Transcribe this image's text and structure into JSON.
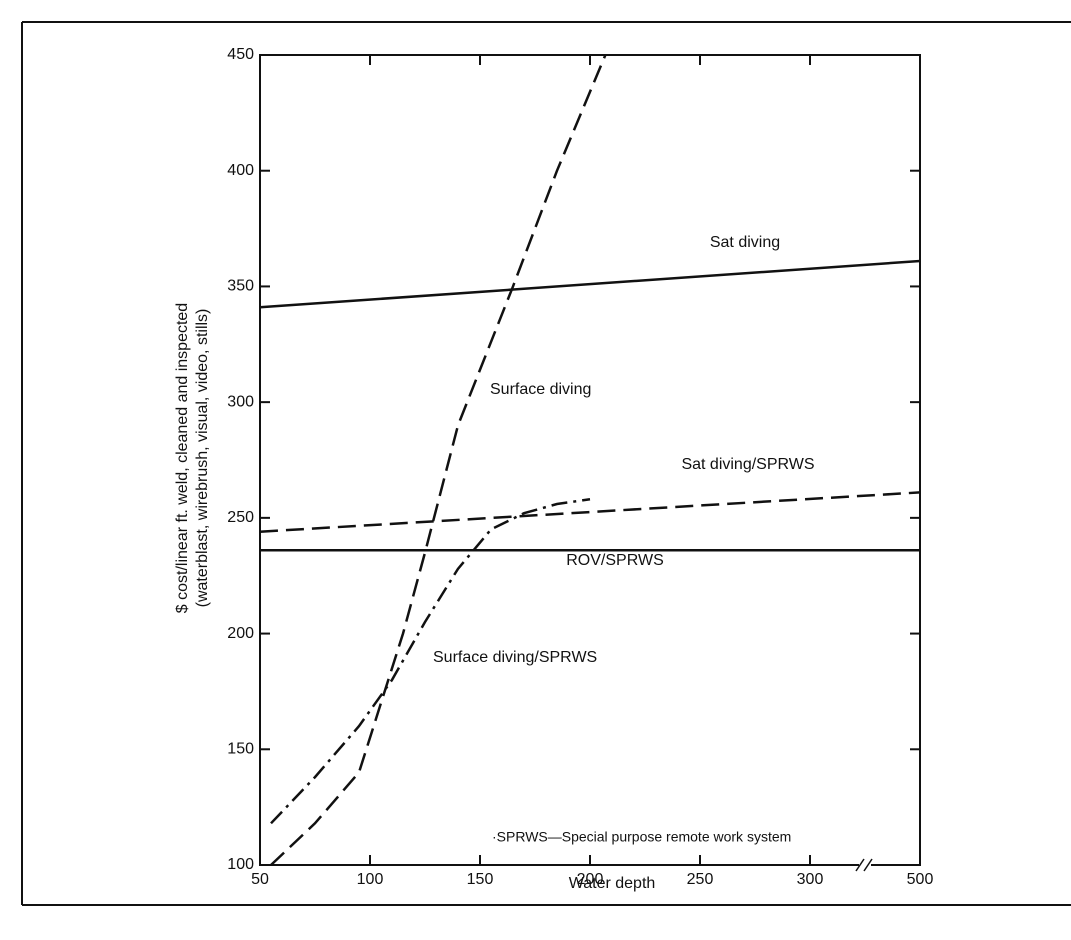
{
  "chart_data": {
    "type": "line",
    "x_label": "Water depth",
    "y_label": [
      "$ cost/linear ft. weld, cleaned and inspected",
      "(waterblast, wirebrush, visual, video, stills)"
    ],
    "footnote": "·SPRWS—Special purpose remote work system",
    "xlim": [
      50,
      500
    ],
    "xticks": [
      50,
      100,
      150,
      200,
      250,
      300,
      500
    ],
    "xbreak": [
      300,
      500
    ],
    "ylim": [
      100,
      450
    ],
    "yticks": [
      100,
      150,
      200,
      250,
      300,
      350,
      400,
      450
    ],
    "series": [
      {
        "name": "Sat diving",
        "color": "#111111",
        "dash": "solid",
        "x": [
          50,
          500
        ],
        "values": [
          341,
          361
        ]
      },
      {
        "name": "Surface diving",
        "color": "#111111",
        "dash": "dashed",
        "x": [
          55,
          75,
          95,
          105,
          115,
          125,
          140,
          165,
          185,
          207
        ],
        "values": [
          100,
          118,
          140,
          170,
          200,
          235,
          290,
          350,
          400,
          450
        ]
      },
      {
        "name": "Sat diving/SPRWS",
        "color": "#111111",
        "dash": "dashed",
        "x": [
          50,
          500
        ],
        "values": [
          244,
          261
        ]
      },
      {
        "name": "ROV/SPRWS",
        "color": "#111111",
        "dash": "solid",
        "x": [
          50,
          500
        ],
        "values": [
          236,
          236
        ]
      },
      {
        "name": "Surface diving/SPRWS",
        "color": "#111111",
        "dash": "dashdot",
        "x": [
          55,
          75,
          95,
          110,
          125,
          140,
          155,
          170,
          185,
          200
        ],
        "values": [
          118,
          138,
          160,
          180,
          205,
          228,
          245,
          252,
          256,
          258
        ]
      }
    ]
  }
}
